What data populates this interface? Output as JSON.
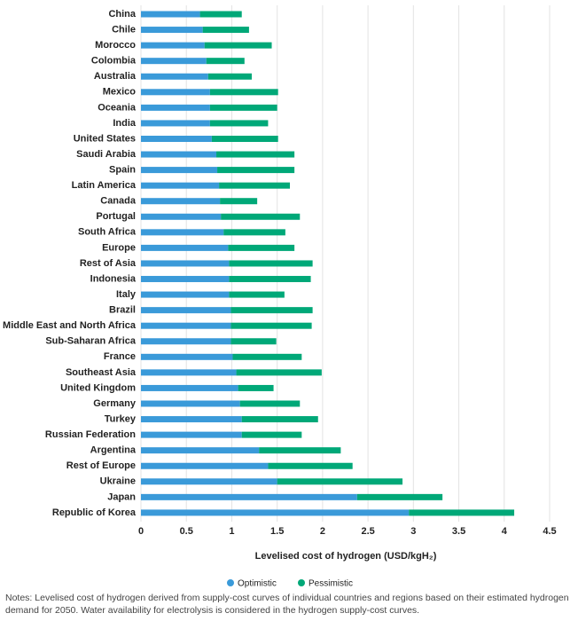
{
  "chart_data": {
    "type": "range-bar",
    "x_label": "Levelised cost of hydrogen (USD/kgH₂)",
    "notes": "Notes: Levelised cost of hydrogen derived from supply-cost curves of individual countries and regions based on their estimated hydrogen demand for 2050. Water availability for electrolysis is considered in the hydrogen supply-cost curves.",
    "categories": [
      "China",
      "Chile",
      "Morocco",
      "Colombia",
      "Australia",
      "Mexico",
      "Oceania",
      "India",
      "United States",
      "Saudi Arabia",
      "Spain",
      "Latin America",
      "Canada",
      "Portugal",
      "South Africa",
      "Europe",
      "Rest of Asia",
      "Indonesia",
      "Italy",
      "Brazil",
      "Middle East and North Africa",
      "Sub-Saharan Africa",
      "France",
      "Southeast Asia",
      "United Kingdom",
      "Germany",
      "Turkey",
      "Russian Federation",
      "Argentina",
      "Rest of Europe",
      "Ukraine",
      "Japan",
      "Republic of Korea"
    ],
    "series": [
      {
        "name": "Optimistic",
        "color": "#3a9ad9",
        "values": [
          0.65,
          0.68,
          0.7,
          0.72,
          0.74,
          0.76,
          0.76,
          0.76,
          0.78,
          0.83,
          0.84,
          0.86,
          0.87,
          0.88,
          0.91,
          0.96,
          0.97,
          0.97,
          0.97,
          0.99,
          0.99,
          0.99,
          1.01,
          1.05,
          1.07,
          1.09,
          1.11,
          1.11,
          1.3,
          1.4,
          1.5,
          2.38,
          2.95
        ]
      },
      {
        "name": "Pessimistic",
        "color": "#00a878",
        "values": [
          1.11,
          1.19,
          1.44,
          1.14,
          1.22,
          1.51,
          1.5,
          1.4,
          1.51,
          1.69,
          1.69,
          1.64,
          1.28,
          1.75,
          1.59,
          1.69,
          1.89,
          1.87,
          1.58,
          1.89,
          1.88,
          1.49,
          1.77,
          1.99,
          1.46,
          1.75,
          1.95,
          1.77,
          2.2,
          2.33,
          2.88,
          3.32,
          4.11
        ]
      }
    ],
    "xlim": [
      0,
      4.5
    ],
    "xticks": [
      0,
      0.5,
      1,
      1.5,
      2,
      2.5,
      3,
      3.5,
      4,
      4.5
    ],
    "grid": true
  }
}
